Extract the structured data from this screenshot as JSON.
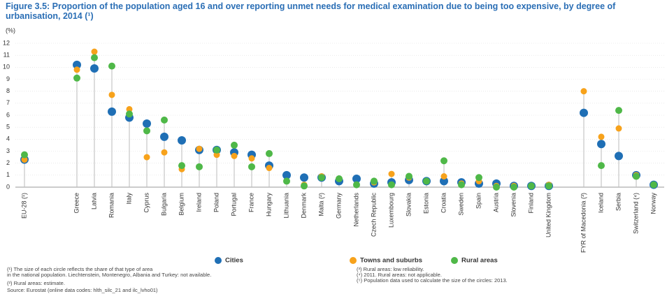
{
  "chart_data": {
    "type": "dot",
    "title": "Figure 3.5: Proportion of the population aged 16 and over reporting unmet needs for medical examination due to being too expensive, by degree of urbanisation, 2014 (¹)",
    "y_label": "(%)",
    "categories": [
      "EU-28 (¹)",
      null,
      null,
      "Greece",
      "Latvia",
      "Romania",
      "Italy",
      "Cyprus",
      "Bulgaria",
      "Belgium",
      "Ireland",
      "Poland",
      "Portugal",
      "France",
      "Hungary",
      "Lithuania",
      "Denmark",
      "Malta (²)",
      "Germany",
      "Netherlands",
      "Czech Republic",
      "Luxembourg",
      "Slovakia",
      "Estonia",
      "Croatia",
      "Sweden",
      "Spain",
      "Austria",
      "Slovenia",
      "Finland",
      "United Kingdom",
      null,
      "FYR of Macedonia (³)",
      "Iceland",
      "Serbia",
      "Switzerland (⁴)",
      "Norway"
    ],
    "series": [
      {
        "name": "Cities",
        "color": "#1f6fb5",
        "values": [
          2.3,
          null,
          null,
          10.2,
          9.9,
          6.3,
          5.8,
          5.3,
          4.2,
          3.9,
          3.1,
          3.1,
          2.9,
          2.7,
          1.8,
          1.0,
          0.8,
          0.8,
          0.5,
          0.7,
          0.3,
          0.4,
          0.6,
          0.5,
          0.5,
          0.4,
          0.3,
          0.3,
          0.1,
          0.1,
          0.1,
          null,
          6.2,
          3.6,
          2.6,
          1.0,
          0.2
        ]
      },
      {
        "name": "Towns and suburbs",
        "color": "#f7a21b",
        "values": [
          2.3,
          null,
          null,
          9.8,
          11.3,
          7.7,
          6.5,
          2.5,
          2.9,
          1.5,
          3.2,
          2.7,
          2.6,
          2.4,
          1.6,
          0.5,
          0.2,
          0.9,
          0.7,
          0.2,
          0.4,
          1.1,
          0.8,
          0.5,
          0.9,
          0.3,
          0.5,
          0.1,
          0.1,
          0.1,
          0.2,
          null,
          8.0,
          4.2,
          4.9,
          1.0,
          0.2
        ]
      },
      {
        "name": "Rural areas",
        "color": "#4fb848",
        "values": [
          2.7,
          null,
          null,
          9.1,
          10.8,
          10.1,
          6.1,
          4.7,
          5.6,
          1.8,
          1.7,
          3.1,
          3.5,
          1.7,
          2.8,
          0.5,
          0.1,
          0.8,
          0.7,
          0.2,
          0.5,
          0.2,
          0.9,
          0.5,
          2.2,
          0.2,
          0.8,
          0.0,
          0.0,
          0.1,
          0.1,
          null,
          null,
          1.8,
          6.4,
          0.9,
          0.2
        ]
      }
    ],
    "ylim": [
      0,
      12
    ],
    "yticks": [
      0,
      1,
      2,
      3,
      4,
      5,
      6,
      7,
      8,
      9,
      10,
      11,
      12
    ],
    "footnotes": [
      "(¹) The size of each circle reflects the share of that type of area in the national population. Liechtenstein, Montenegro, Albania and Turkey: not available.",
      "(²) Rural areas: estimate.",
      "(³) Rural areas: low reliability.",
      "(⁴) 2011. Rural areas: not applicable.",
      "(⁵) Population data used to calculate the size of the circles: 2013."
    ],
    "source": "Source: Eurostat (online data codes: hlth_silc_21 and ilc_lvho01)"
  }
}
